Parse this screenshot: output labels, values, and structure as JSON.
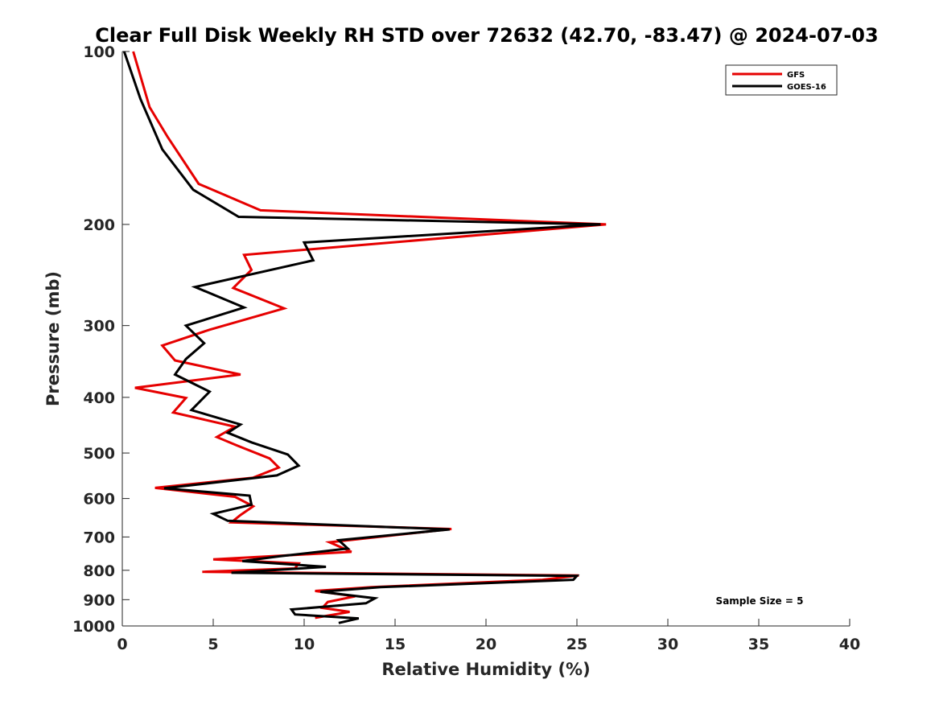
{
  "chart_data": {
    "type": "line",
    "title": "Clear Full Disk Weekly RH STD over 72632 (42.70, -83.47) @ 2024-07-03",
    "xlabel": "Relative Humidity (%)",
    "ylabel": "Pressure (mb)",
    "xlim": [
      0,
      40
    ],
    "ylim": [
      1000,
      100
    ],
    "yscale": "log",
    "x_ticks": [
      "0",
      "5",
      "10",
      "15",
      "20",
      "25",
      "30",
      "35",
      "40"
    ],
    "y_ticks": [
      "100",
      "200",
      "300",
      "400",
      "500",
      "600",
      "700",
      "800",
      "900",
      "1000"
    ],
    "grid": false,
    "legend_position": "top-right",
    "annotation": "Sample Size = 5",
    "series": [
      {
        "name": "GFS",
        "color": "#e60000",
        "points": [
          [
            0.6,
            100
          ],
          [
            1.5,
            125
          ],
          [
            2.5,
            141
          ],
          [
            4.2,
            170
          ],
          [
            7.6,
            189
          ],
          [
            26.6,
            200
          ],
          [
            6.7,
            226
          ],
          [
            7.1,
            240
          ],
          [
            6.1,
            258
          ],
          [
            8.9,
            280
          ],
          [
            4.8,
            305
          ],
          [
            2.2,
            325
          ],
          [
            2.9,
            345
          ],
          [
            6.5,
            365
          ],
          [
            0.7,
            385
          ],
          [
            3.5,
            401
          ],
          [
            2.8,
            425
          ],
          [
            6.2,
            450
          ],
          [
            5.2,
            469
          ],
          [
            6.3,
            485
          ],
          [
            8.1,
            511
          ],
          [
            8.6,
            530
          ],
          [
            7.2,
            552
          ],
          [
            1.8,
            575
          ],
          [
            6.2,
            596
          ],
          [
            7.2,
            619
          ],
          [
            6.5,
            641
          ],
          [
            6.0,
            660
          ],
          [
            18.1,
            678
          ],
          [
            11.4,
            715
          ],
          [
            12.6,
            743
          ],
          [
            5.0,
            766
          ],
          [
            9.7,
            778
          ],
          [
            9.5,
            794
          ],
          [
            4.4,
            805
          ],
          [
            25.1,
            817
          ],
          [
            23.1,
            831
          ],
          [
            13.7,
            856
          ],
          [
            10.6,
            869
          ],
          [
            12.8,
            888
          ],
          [
            11.3,
            908
          ],
          [
            11.0,
            930
          ],
          [
            12.5,
            945
          ],
          [
            10.6,
            968
          ]
        ]
      },
      {
        "name": "GOES-16",
        "color": "#000000",
        "points": [
          [
            0.1,
            100
          ],
          [
            1.0,
            121
          ],
          [
            2.2,
            148
          ],
          [
            3.9,
            174
          ],
          [
            6.4,
            194
          ],
          [
            26.3,
            200
          ],
          [
            10.0,
            215
          ],
          [
            10.5,
            231
          ],
          [
            4.0,
            257
          ],
          [
            6.7,
            279
          ],
          [
            3.5,
            300
          ],
          [
            4.5,
            322
          ],
          [
            3.5,
            343
          ],
          [
            2.9,
            365
          ],
          [
            4.8,
            391
          ],
          [
            3.8,
            421
          ],
          [
            6.5,
            446
          ],
          [
            5.8,
            461
          ],
          [
            7.1,
            479
          ],
          [
            9.1,
            503
          ],
          [
            9.7,
            526
          ],
          [
            8.5,
            547
          ],
          [
            2.3,
            576
          ],
          [
            7.0,
            593
          ],
          [
            7.1,
            615
          ],
          [
            5.0,
            638
          ],
          [
            5.8,
            656
          ],
          [
            18.0,
            679
          ],
          [
            11.9,
            709
          ],
          [
            12.4,
            733
          ],
          [
            8.7,
            756
          ],
          [
            6.6,
            771
          ],
          [
            11.2,
            789
          ],
          [
            6.0,
            808
          ],
          [
            25.0,
            818
          ],
          [
            24.8,
            831
          ],
          [
            14.2,
            856
          ],
          [
            10.9,
            872
          ],
          [
            13.9,
            895
          ],
          [
            13.4,
            913
          ],
          [
            9.3,
            936
          ],
          [
            9.5,
            955
          ],
          [
            13.0,
            970
          ],
          [
            11.9,
            988
          ]
        ]
      }
    ]
  }
}
